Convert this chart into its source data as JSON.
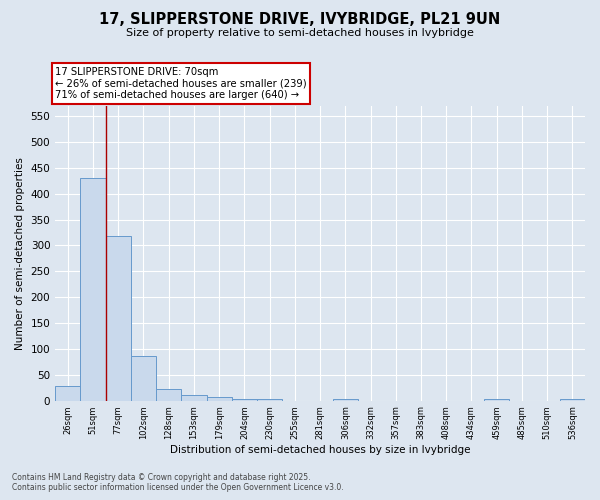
{
  "title": "17, SLIPPERSTONE DRIVE, IVYBRIDGE, PL21 9UN",
  "subtitle": "Size of property relative to semi-detached houses in Ivybridge",
  "xlabel": "Distribution of semi-detached houses by size in Ivybridge",
  "ylabel": "Number of semi-detached properties",
  "categories": [
    "26sqm",
    "51sqm",
    "77sqm",
    "102sqm",
    "128sqm",
    "153sqm",
    "179sqm",
    "204sqm",
    "230sqm",
    "255sqm",
    "281sqm",
    "306sqm",
    "332sqm",
    "357sqm",
    "383sqm",
    "408sqm",
    "434sqm",
    "459sqm",
    "485sqm",
    "510sqm",
    "536sqm"
  ],
  "values": [
    28,
    430,
    318,
    87,
    23,
    10,
    6,
    4,
    4,
    0,
    0,
    4,
    0,
    0,
    0,
    0,
    0,
    4,
    0,
    0,
    4
  ],
  "bar_color": "#c9d9ec",
  "bar_edge_color": "#6699cc",
  "ylim": [
    0,
    570
  ],
  "yticks": [
    0,
    50,
    100,
    150,
    200,
    250,
    300,
    350,
    400,
    450,
    500,
    550
  ],
  "red_line_x": 1.5,
  "annotation_title": "17 SLIPPERSTONE DRIVE: 70sqm",
  "annotation_line1": "← 26% of semi-detached houses are smaller (239)",
  "annotation_line2": "71% of semi-detached houses are larger (640) →",
  "annotation_box_color": "#ffffff",
  "annotation_box_edge": "#cc0000",
  "background_color": "#dde6f0",
  "plot_background": "#dde6f0",
  "grid_color": "#ffffff",
  "footer_line1": "Contains HM Land Registry data © Crown copyright and database right 2025.",
  "footer_line2": "Contains public sector information licensed under the Open Government Licence v3.0."
}
